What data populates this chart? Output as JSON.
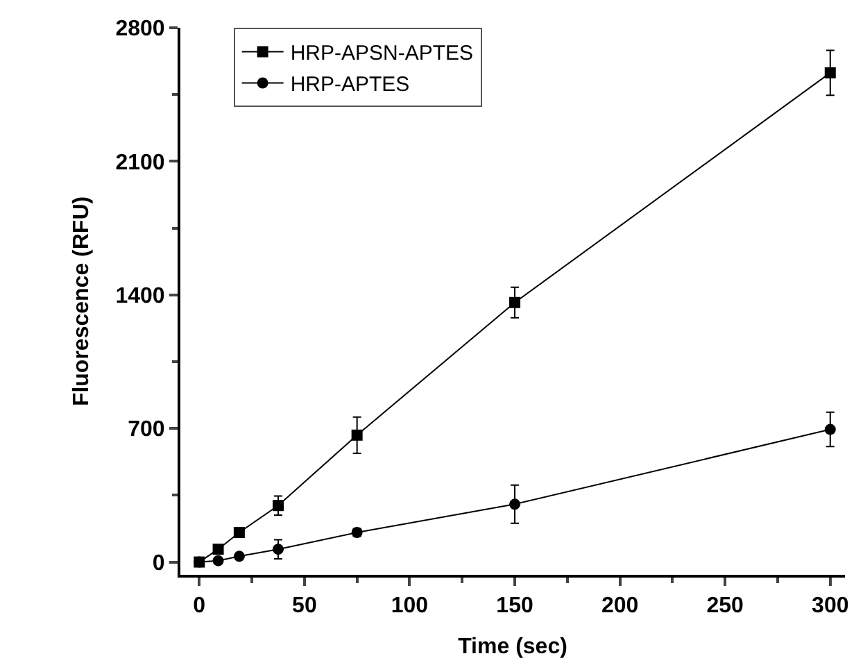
{
  "chart_data": {
    "type": "line",
    "xlabel": "Time (sec)",
    "ylabel": "Fluorescence (RFU)",
    "x": [
      0,
      9,
      19,
      37.5,
      75,
      150,
      300
    ],
    "series": [
      {
        "name": "HRP-APSN-APTES",
        "color": "#000000",
        "marker": "square",
        "values": [
          0,
          67,
          155,
          296,
          665,
          1360,
          2564
        ],
        "errors": [
          null,
          null,
          null,
          50,
          95,
          80,
          118
        ]
      },
      {
        "name": "HRP-APTES",
        "color": "#000000",
        "marker": "circle",
        "values": [
          0,
          7,
          30,
          67,
          155,
          303,
          695
        ],
        "errors": [
          null,
          null,
          null,
          50,
          20,
          100,
          90
        ]
      }
    ],
    "xlim": [
      -9,
      307
    ],
    "xticks": [
      0,
      50,
      100,
      150,
      200,
      250,
      300
    ],
    "ylim": [
      -67,
      2800
    ],
    "yticks": [
      0,
      700,
      1400,
      2100,
      2800
    ],
    "legend": "top left",
    "line_style": "solid"
  }
}
